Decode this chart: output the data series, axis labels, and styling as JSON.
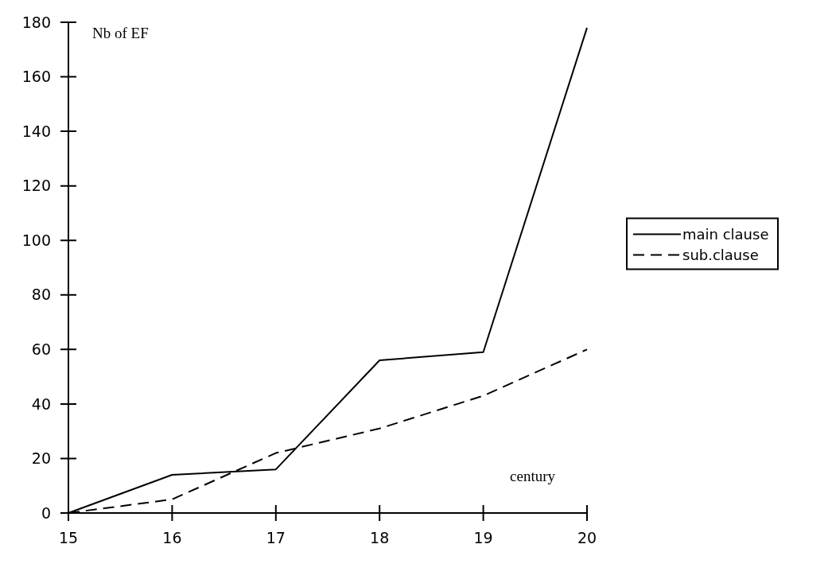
{
  "chart_data": {
    "type": "line",
    "ylabel": "Nb of EF",
    "xlabel": "century",
    "x": [
      15,
      16,
      17,
      18,
      19,
      20
    ],
    "series": [
      {
        "name": "main clause",
        "color": "#000000",
        "line_style": "solid",
        "values": [
          0,
          14,
          16,
          56,
          59,
          178
        ]
      },
      {
        "name": "sub.clause",
        "color": "#000000",
        "line_style": "dashed",
        "values": [
          0,
          5,
          22,
          31,
          43,
          60
        ]
      }
    ],
    "xlim": [
      15,
      20
    ],
    "xticks": [
      15,
      16,
      17,
      18,
      19,
      20
    ],
    "ylim": [
      0,
      180
    ],
    "yticks": [
      0,
      20,
      40,
      60,
      80,
      100,
      120,
      140,
      160,
      180
    ],
    "grid": false,
    "legend": "right",
    "marker": "none"
  }
}
